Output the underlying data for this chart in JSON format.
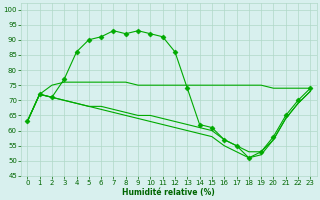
{
  "xlabel": "Humidité relative (%)",
  "background_color": "#d8f0ee",
  "grid_color": "#b0d8c8",
  "line_color": "#00aa00",
  "marker": "D",
  "markersize": 2.5,
  "xlim": [
    -0.5,
    23.5
  ],
  "ylim": [
    45,
    102
  ],
  "yticks": [
    45,
    50,
    55,
    60,
    65,
    70,
    75,
    80,
    85,
    90,
    95,
    100
  ],
  "xticks": [
    0,
    1,
    2,
    3,
    4,
    5,
    6,
    7,
    8,
    9,
    10,
    11,
    12,
    13,
    14,
    15,
    16,
    17,
    18,
    19,
    20,
    21,
    22,
    23
  ],
  "series": [
    {
      "x": [
        0,
        1,
        2,
        3,
        4,
        5,
        6,
        7,
        8,
        9,
        10,
        11,
        12,
        13,
        14,
        15,
        16,
        17,
        18,
        19,
        20,
        21,
        22,
        23
      ],
      "y": [
        63,
        72,
        71,
        77,
        86,
        90,
        91,
        93,
        92,
        93,
        92,
        91,
        86,
        74,
        62,
        61,
        57,
        55,
        51,
        53,
        58,
        65,
        70,
        74
      ],
      "markers": true
    },
    {
      "x": [
        0,
        1,
        2,
        3,
        4,
        5,
        6,
        7,
        8,
        9,
        10,
        11,
        12,
        13,
        14,
        15,
        16,
        17,
        18,
        19,
        20,
        21,
        22,
        23
      ],
      "y": [
        63,
        72,
        75,
        76,
        76,
        76,
        76,
        76,
        76,
        75,
        75,
        75,
        75,
        75,
        75,
        75,
        75,
        75,
        75,
        75,
        74,
        74,
        74,
        74
      ],
      "markers": false
    },
    {
      "x": [
        0,
        1,
        2,
        3,
        4,
        5,
        6,
        7,
        8,
        9,
        10,
        11,
        12,
        13,
        14,
        15,
        16,
        17,
        18,
        19,
        20,
        21,
        22,
        23
      ],
      "y": [
        63,
        72,
        71,
        70,
        69,
        68,
        68,
        67,
        66,
        65,
        65,
        64,
        63,
        62,
        61,
        60,
        57,
        55,
        53,
        53,
        57,
        64,
        69,
        73
      ],
      "markers": false
    },
    {
      "x": [
        0,
        1,
        2,
        3,
        4,
        5,
        6,
        7,
        8,
        9,
        10,
        11,
        12,
        13,
        14,
        15,
        16,
        17,
        18,
        19,
        20,
        21,
        22,
        23
      ],
      "y": [
        63,
        72,
        71,
        70,
        69,
        68,
        67,
        66,
        65,
        64,
        63,
        62,
        61,
        60,
        59,
        58,
        55,
        53,
        51,
        52,
        57,
        64,
        69,
        73
      ],
      "markers": false
    }
  ]
}
